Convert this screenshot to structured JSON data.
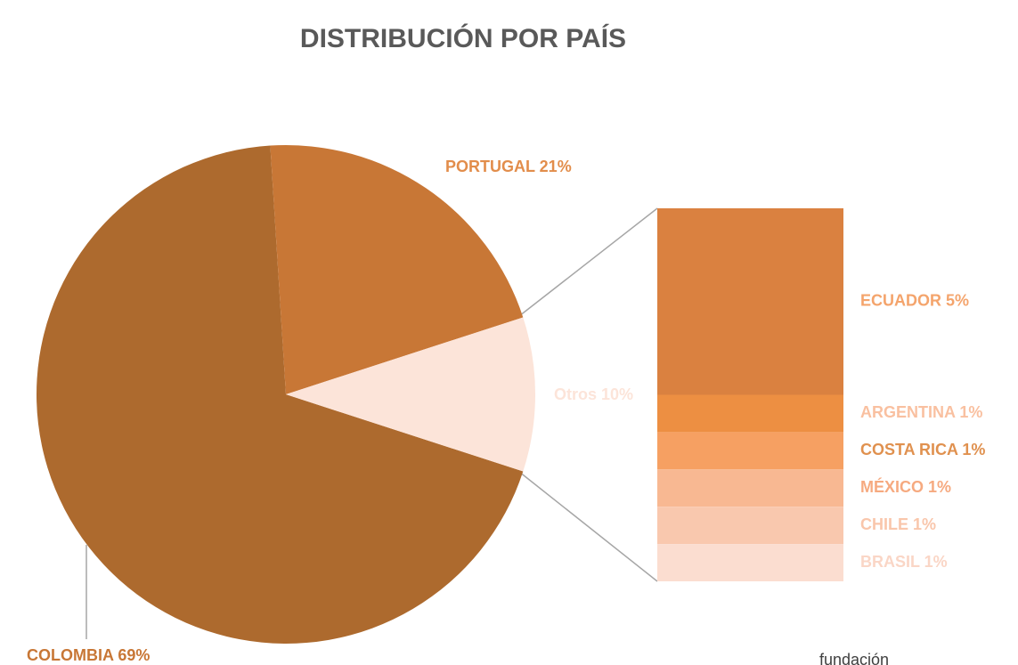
{
  "chart_data": {
    "type": "pie",
    "title": "DISTRIBUCIÓN POR PAÍS",
    "values": [
      69,
      21,
      10
    ],
    "value_labels": [
      "COLOMBIA 69%",
      "PORTUGAL 21%",
      "Otros 10%"
    ],
    "colors": [
      "#ad6a2e",
      "#c87736",
      "#fce4d9"
    ],
    "label_colors": [
      "#c87736",
      "#e28d4b",
      "#fce4d9"
    ],
    "breakdown": {
      "values": [
        5,
        1,
        1,
        1,
        1,
        1
      ],
      "value_labels": [
        "ECUADOR 5%",
        "ARGENTINA 1%",
        "COSTA RICA 1%",
        "MÉXICO 1%",
        "CHILE 1%",
        "BRASIL 1%"
      ],
      "colors": [
        "#da8140",
        "#ed8f42",
        "#f6a062",
        "#f8b892",
        "#f9c8ae",
        "#fbddd0"
      ],
      "label_colors": [
        "#f4a46c",
        "#f9c0a0",
        "#e0914f",
        "#f6aa80",
        "#f9c6ab",
        "#fad6c6"
      ]
    },
    "footer": "fundación"
  }
}
